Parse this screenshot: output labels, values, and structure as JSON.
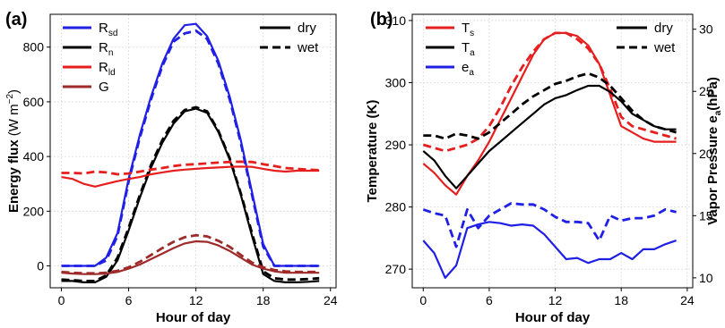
{
  "chart_data": [
    {
      "panel": "(a)",
      "type": "line",
      "xlabel": "Hour of day",
      "ylabel": "Energy flux",
      "ylabel_unit": "(W m",
      "ylabel_unit_exp": "−2",
      "ylabel_unit_close": ")",
      "xlim": [
        -1,
        24.5
      ],
      "ylim": [
        -80,
        920
      ],
      "xticks": [
        0,
        6,
        12,
        18,
        24
      ],
      "yticks": [
        0,
        200,
        400,
        600,
        800
      ],
      "grid": true,
      "legend_left": [
        {
          "base": "R",
          "sub": "sd",
          "color": "#1f1fe6"
        },
        {
          "base": "R",
          "sub": "n",
          "color": "#000000"
        },
        {
          "base": "R",
          "sub": "ld",
          "color": "#e61e1e"
        },
        {
          "base": "G",
          "sub": "",
          "color": "#9e2a2a"
        }
      ],
      "legend_right": [
        {
          "label": "dry",
          "style": "solid"
        },
        {
          "label": "wet",
          "style": "dashed"
        }
      ],
      "series": [
        {
          "var": "Rsd",
          "condition": "dry",
          "color": "#1f1fe6",
          "x": [
            0,
            1,
            2,
            3,
            4,
            5,
            6,
            7,
            8,
            9,
            10,
            11,
            12,
            13,
            14,
            15,
            16,
            17,
            18,
            19,
            20,
            21,
            22,
            23
          ],
          "y": [
            0,
            0,
            0,
            0,
            30,
            120,
            320,
            480,
            620,
            740,
            830,
            880,
            885,
            840,
            750,
            620,
            460,
            270,
            80,
            0,
            0,
            0,
            0,
            0
          ]
        },
        {
          "var": "Rsd",
          "condition": "wet",
          "color": "#1f1fe6",
          "x": [
            0,
            1,
            2,
            3,
            4,
            5,
            6,
            7,
            8,
            9,
            10,
            11,
            12,
            13,
            14,
            15,
            16,
            17,
            18,
            19,
            20,
            21,
            22,
            23
          ],
          "y": [
            0,
            0,
            0,
            0,
            20,
            110,
            310,
            470,
            610,
            730,
            820,
            850,
            860,
            830,
            740,
            610,
            450,
            260,
            70,
            0,
            0,
            0,
            0,
            0
          ]
        },
        {
          "var": "Rn",
          "condition": "dry",
          "color": "#000000",
          "x": [
            0,
            1,
            2,
            3,
            4,
            5,
            6,
            7,
            8,
            9,
            10,
            11,
            12,
            13,
            14,
            15,
            16,
            17,
            18,
            19,
            20,
            21,
            22,
            23
          ],
          "y": [
            -55,
            -55,
            -60,
            -60,
            -40,
            20,
            130,
            250,
            360,
            450,
            520,
            565,
            575,
            560,
            490,
            390,
            260,
            110,
            -30,
            -55,
            -60,
            -60,
            -58,
            -55
          ]
        },
        {
          "var": "Rn",
          "condition": "wet",
          "color": "#000000",
          "x": [
            0,
            1,
            2,
            3,
            4,
            5,
            6,
            7,
            8,
            9,
            10,
            11,
            12,
            13,
            14,
            15,
            16,
            17,
            18,
            19,
            20,
            21,
            22,
            23
          ],
          "y": [
            -50,
            -52,
            -55,
            -55,
            -35,
            30,
            140,
            260,
            370,
            460,
            530,
            570,
            580,
            565,
            495,
            395,
            265,
            120,
            -20,
            -45,
            -50,
            -50,
            -48,
            -45
          ]
        },
        {
          "var": "Rld",
          "condition": "dry",
          "color": "#e61e1e",
          "x": [
            0,
            1,
            2,
            3,
            4,
            5,
            6,
            7,
            8,
            9,
            10,
            11,
            12,
            13,
            14,
            15,
            16,
            17,
            18,
            19,
            20,
            21,
            22,
            23
          ],
          "y": [
            325,
            318,
            300,
            290,
            300,
            310,
            318,
            325,
            335,
            342,
            348,
            352,
            355,
            358,
            360,
            362,
            363,
            362,
            355,
            348,
            345,
            348,
            348,
            348
          ]
        },
        {
          "var": "Rld",
          "condition": "wet",
          "color": "#e61e1e",
          "x": [
            0,
            1,
            2,
            3,
            4,
            5,
            6,
            7,
            8,
            9,
            10,
            11,
            12,
            13,
            14,
            15,
            16,
            17,
            18,
            19,
            20,
            21,
            22,
            23
          ],
          "y": [
            340,
            340,
            338,
            345,
            342,
            335,
            338,
            345,
            352,
            358,
            365,
            370,
            372,
            375,
            378,
            380,
            381,
            380,
            372,
            365,
            358,
            355,
            352,
            350
          ]
        },
        {
          "var": "G",
          "condition": "dry",
          "color": "#9e2a2a",
          "x": [
            0,
            1,
            2,
            3,
            4,
            5,
            6,
            7,
            8,
            9,
            10,
            11,
            12,
            13,
            14,
            15,
            16,
            17,
            18,
            19,
            20,
            21,
            22,
            23
          ],
          "y": [
            -25,
            -28,
            -30,
            -30,
            -28,
            -22,
            -10,
            5,
            25,
            45,
            65,
            82,
            90,
            88,
            75,
            55,
            30,
            5,
            -10,
            -20,
            -25,
            -25,
            -25,
            -25
          ]
        },
        {
          "var": "G",
          "condition": "wet",
          "color": "#9e2a2a",
          "x": [
            0,
            1,
            2,
            3,
            4,
            5,
            6,
            7,
            8,
            9,
            10,
            11,
            12,
            13,
            14,
            15,
            16,
            17,
            18,
            19,
            20,
            21,
            22,
            23
          ],
          "y": [
            -22,
            -25,
            -27,
            -27,
            -25,
            -18,
            -5,
            15,
            40,
            65,
            88,
            105,
            112,
            108,
            92,
            70,
            40,
            12,
            -5,
            -15,
            -20,
            -22,
            -22,
            -22
          ]
        }
      ]
    },
    {
      "panel": "(b)",
      "type": "line",
      "xlabel": "Hour of day",
      "ylabel": "Temperature (K)",
      "y2label": "Vapor Pressure e",
      "y2label_sub": "a",
      "y2label_unit": "(hPa)",
      "xlim": [
        -1,
        24.5
      ],
      "ylim": [
        267,
        311
      ],
      "y2lim": [
        9.2,
        31.2
      ],
      "xticks": [
        0,
        6,
        12,
        18,
        24
      ],
      "yticks": [
        270,
        280,
        290,
        300,
        310
      ],
      "y2ticks": [
        10,
        15,
        20,
        25,
        30
      ],
      "grid": true,
      "legend_left": [
        {
          "base": "T",
          "sub": "s",
          "color": "#e61e1e"
        },
        {
          "base": "T",
          "sub": "a",
          "color": "#000000"
        },
        {
          "base": "e",
          "sub": "a",
          "color": "#1f1fe6"
        }
      ],
      "legend_right": [
        {
          "label": "dry",
          "style": "solid"
        },
        {
          "label": "wet",
          "style": "dashed"
        }
      ],
      "series": [
        {
          "var": "Ts",
          "condition": "dry",
          "color": "#e61e1e",
          "axis": "left",
          "x": [
            0,
            1,
            2,
            3,
            4,
            5,
            6,
            7,
            8,
            9,
            10,
            11,
            12,
            13,
            14,
            15,
            16,
            17,
            18,
            19,
            20,
            21,
            22,
            23
          ],
          "y": [
            287,
            285.5,
            283.5,
            282,
            285,
            287.5,
            290.5,
            294,
            297.5,
            301,
            304.5,
            307,
            308,
            308,
            307.5,
            306,
            303,
            298,
            293,
            292,
            291,
            290.5,
            290.5,
            290.5
          ]
        },
        {
          "var": "Ts",
          "condition": "wet",
          "color": "#e61e1e",
          "axis": "left",
          "x": [
            0,
            1,
            2,
            3,
            4,
            5,
            6,
            7,
            8,
            9,
            10,
            11,
            12,
            13,
            14,
            15,
            16,
            17,
            18,
            19,
            20,
            21,
            22,
            23
          ],
          "y": [
            290,
            289.5,
            289,
            289.5,
            290,
            291,
            293,
            296,
            299.5,
            302.5,
            305,
            307,
            308,
            308,
            307,
            305.5,
            303,
            299,
            294.5,
            293,
            292.5,
            292,
            291.5,
            291
          ]
        },
        {
          "var": "Ta",
          "condition": "dry",
          "color": "#000000",
          "axis": "left",
          "x": [
            0,
            1,
            2,
            3,
            4,
            5,
            6,
            7,
            8,
            9,
            10,
            11,
            12,
            13,
            14,
            15,
            16,
            17,
            18,
            19,
            20,
            21,
            22,
            23
          ],
          "y": [
            289,
            287.5,
            285,
            283,
            285,
            287,
            289,
            290.5,
            292,
            293.5,
            295,
            296.5,
            297.5,
            298,
            298.8,
            299.5,
            299.5,
            298.5,
            297,
            295,
            294,
            293,
            292.5,
            292.5
          ]
        },
        {
          "var": "Ta",
          "condition": "wet",
          "color": "#000000",
          "axis": "left",
          "x": [
            0,
            1,
            2,
            3,
            4,
            5,
            6,
            7,
            8,
            9,
            10,
            11,
            12,
            13,
            14,
            15,
            16,
            17,
            18,
            19,
            20,
            21,
            22,
            23
          ],
          "y": [
            291.5,
            291.5,
            291,
            291.8,
            291.5,
            291,
            292,
            293.5,
            295,
            296.5,
            297.8,
            298.8,
            299.8,
            300.3,
            301,
            301.5,
            300.8,
            299.5,
            297.5,
            295.5,
            294,
            293,
            292.5,
            292
          ]
        },
        {
          "var": "ea",
          "condition": "dry",
          "color": "#1f1fe6",
          "axis": "right",
          "x": [
            0,
            1,
            2,
            3,
            4,
            5,
            6,
            7,
            8,
            9,
            10,
            11,
            12,
            13,
            14,
            15,
            16,
            17,
            18,
            19,
            20,
            21,
            22,
            23
          ],
          "y": [
            13,
            12,
            10,
            11,
            14,
            14.3,
            14.5,
            14.4,
            14.2,
            14.3,
            14.2,
            13.5,
            12.5,
            11.5,
            11.6,
            11.2,
            11.5,
            11.5,
            12,
            11.5,
            12.3,
            12.3,
            12.7,
            13
          ]
        },
        {
          "var": "ea",
          "condition": "wet",
          "color": "#1f1fe6",
          "axis": "right",
          "x": [
            0,
            1,
            2,
            3,
            4,
            5,
            6,
            7,
            8,
            9,
            10,
            11,
            12,
            13,
            14,
            15,
            16,
            17,
            18,
            19,
            20,
            21,
            22,
            23
          ],
          "y": [
            15.5,
            15.2,
            15,
            12.5,
            15.5,
            14,
            15,
            15.5,
            16,
            15.9,
            15.9,
            15.5,
            14.9,
            14.5,
            14.5,
            14.4,
            13,
            15,
            14.6,
            14.8,
            14.8,
            15,
            15.5,
            15.3
          ]
        }
      ]
    }
  ]
}
